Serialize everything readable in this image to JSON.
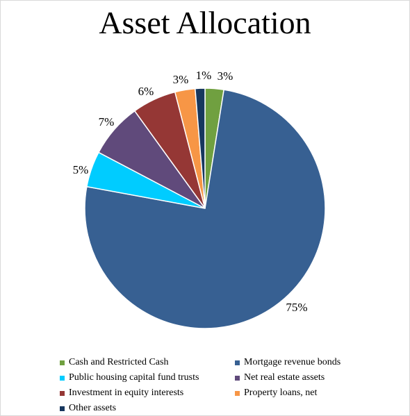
{
  "chart_data": {
    "type": "pie",
    "title": "Asset Allocation",
    "slices": [
      {
        "name": "Cash and Restricted Cash",
        "value": 2.5,
        "label": "3%",
        "color": "#70a040"
      },
      {
        "name": "Mortgage revenue bonds",
        "value": 75,
        "label": "75%",
        "color": "#376092"
      },
      {
        "name": "Public housing capital fund trusts",
        "value": 4.8,
        "label": "5%",
        "color": "#00ccff"
      },
      {
        "name": "Net real estate assets",
        "value": 7.3,
        "label": "7%",
        "color": "#604a7b"
      },
      {
        "name": "Investment in equity interests",
        "value": 5.9,
        "label": "6%",
        "color": "#953735"
      },
      {
        "name": "Property loans, net",
        "value": 2.7,
        "label": "3%",
        "color": "#f79646"
      },
      {
        "name": "Other assets",
        "value": 1.3,
        "label": "1%",
        "color": "#17375e"
      }
    ],
    "legend_position": "bottom"
  }
}
